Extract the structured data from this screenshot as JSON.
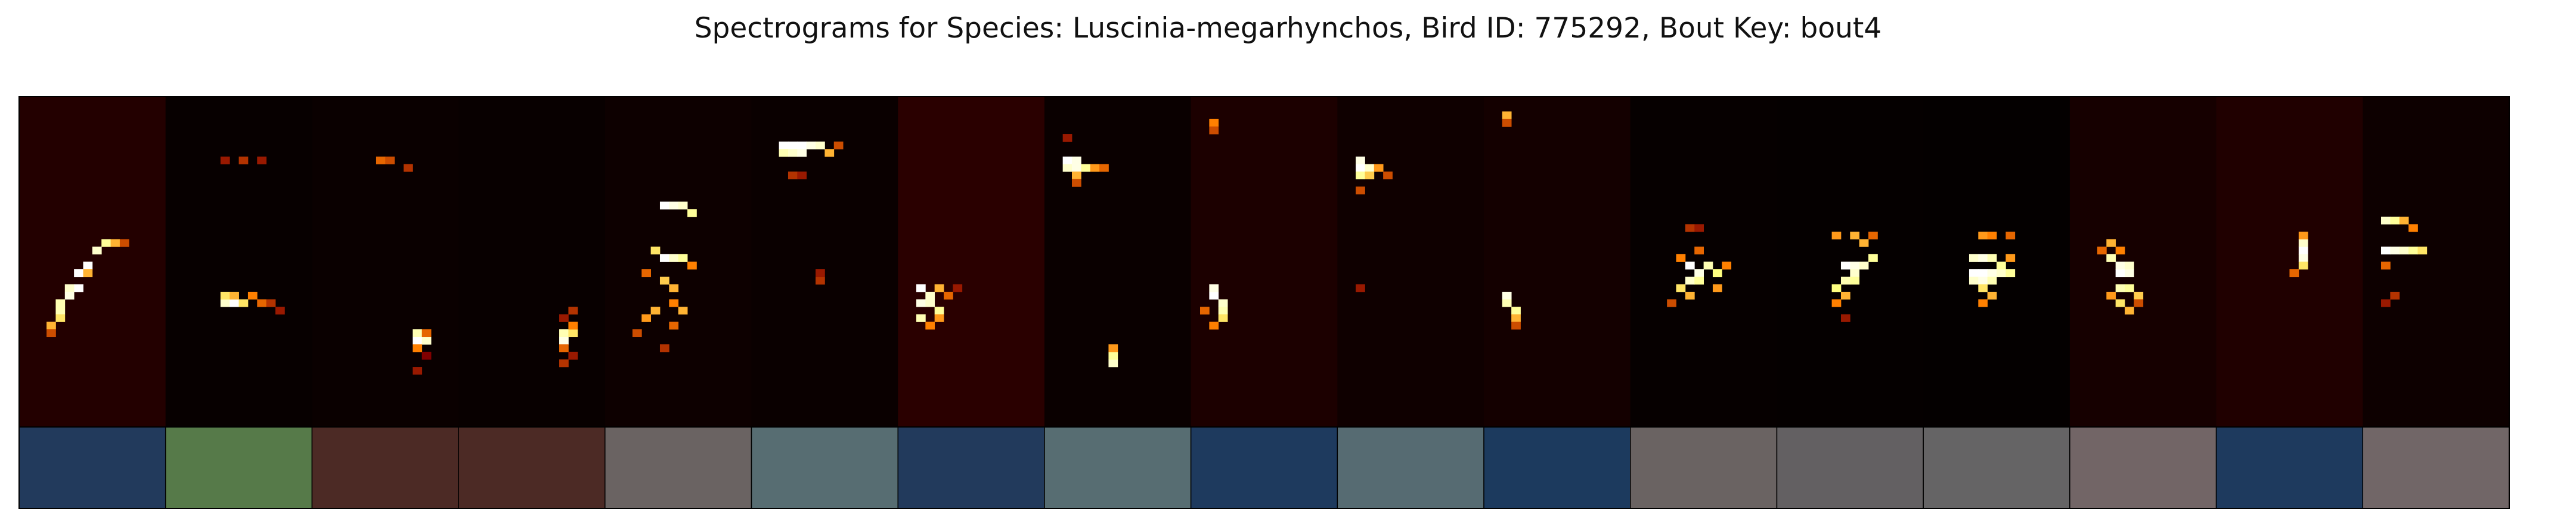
{
  "chart_data": {
    "type": "heatmap",
    "title": "Spectrograms for Species: Luscinia-megarhynchos, Bird ID: 775292, Bout Key: bout4",
    "xlabel": "",
    "ylabel": "",
    "colormap": "afmhot",
    "segment_count": 17,
    "segments": [
      {
        "index": 1,
        "background": "#230000",
        "label_color": "#223a5c",
        "blobs": [
          [
            6,
            18,
            1.0
          ],
          [
            6,
            20,
            1.0
          ],
          [
            7,
            21,
            1.0
          ],
          [
            8,
            23,
            0.9
          ],
          [
            9,
            24,
            0.8
          ],
          [
            10,
            24,
            0.6
          ],
          [
            11,
            24,
            0.4
          ],
          [
            5,
            18,
            0.9
          ],
          [
            5,
            17,
            0.95
          ],
          [
            4,
            16,
            0.85
          ],
          [
            4,
            15,
            0.85
          ],
          [
            4,
            14,
            0.7
          ],
          [
            3,
            13,
            0.6
          ],
          [
            3,
            12,
            0.4
          ],
          [
            7,
            20,
            0.6
          ]
        ]
      },
      {
        "index": 2,
        "background": "#070000",
        "label_color": "#567a49",
        "blobs": [
          [
            6,
            16,
            0.9
          ],
          [
            6,
            17,
            0.7
          ],
          [
            7,
            16,
            1.0
          ],
          [
            8,
            16,
            0.7
          ],
          [
            9,
            17,
            0.5
          ],
          [
            10,
            16,
            0.45
          ],
          [
            11,
            16,
            0.35
          ],
          [
            8,
            35,
            0.35
          ],
          [
            10,
            35,
            0.3
          ],
          [
            6,
            35,
            0.3
          ],
          [
            12,
            15,
            0.3
          ],
          [
            7,
            17,
            0.6
          ]
        ]
      },
      {
        "index": 3,
        "background": "#0a0000",
        "label_color": "#4c2a25",
        "blobs": [
          [
            11,
            11,
            1.0
          ],
          [
            12,
            11,
            0.9
          ],
          [
            11,
            12,
            0.85
          ],
          [
            11,
            10,
            0.5
          ],
          [
            12,
            12,
            0.45
          ],
          [
            7,
            35,
            0.45
          ],
          [
            8,
            35,
            0.4
          ],
          [
            10,
            34,
            0.35
          ],
          [
            11,
            7,
            0.3
          ],
          [
            12,
            9,
            0.25
          ]
        ]
      },
      {
        "index": 4,
        "background": "#080000",
        "label_color": "#4c2a25",
        "blobs": [
          [
            11,
            11,
            0.95
          ],
          [
            11,
            12,
            0.85
          ],
          [
            12,
            12,
            0.7
          ],
          [
            11,
            10,
            0.45
          ],
          [
            12,
            13,
            0.5
          ],
          [
            12,
            15,
            0.35
          ],
          [
            11,
            8,
            0.35
          ],
          [
            12,
            9,
            0.3
          ],
          [
            11,
            14,
            0.3
          ]
        ]
      },
      {
        "index": 5,
        "background": "#0d0000",
        "label_color": "#6a6362",
        "blobs": [
          [
            6,
            29,
            1.0
          ],
          [
            7,
            29,
            0.95
          ],
          [
            8,
            29,
            0.9
          ],
          [
            9,
            28,
            0.8
          ],
          [
            6,
            22,
            1.0
          ],
          [
            7,
            22,
            0.9
          ],
          [
            8,
            22,
            0.8
          ],
          [
            5,
            23,
            0.7
          ],
          [
            6,
            19,
            0.65
          ],
          [
            7,
            18,
            0.6
          ],
          [
            5,
            15,
            0.6
          ],
          [
            8,
            15,
            0.6
          ],
          [
            4,
            14,
            0.55
          ],
          [
            7,
            13,
            0.45
          ],
          [
            6,
            10,
            0.35
          ],
          [
            7,
            16,
            0.5
          ],
          [
            9,
            21,
            0.5
          ],
          [
            3,
            12,
            0.4
          ],
          [
            4,
            20,
            0.45
          ]
        ]
      },
      {
        "index": 6,
        "background": "#0a0000",
        "label_color": "#576d72",
        "blobs": [
          [
            3,
            37,
            1.0
          ],
          [
            4,
            37,
            1.0
          ],
          [
            5,
            37,
            1.0
          ],
          [
            6,
            37,
            0.95
          ],
          [
            7,
            37,
            0.9
          ],
          [
            3,
            36,
            0.85
          ],
          [
            4,
            36,
            0.9
          ],
          [
            5,
            36,
            0.95
          ],
          [
            8,
            36,
            0.6
          ],
          [
            9,
            37,
            0.4
          ],
          [
            4,
            33,
            0.35
          ],
          [
            5,
            33,
            0.3
          ],
          [
            7,
            19,
            0.35
          ],
          [
            7,
            20,
            0.3
          ]
        ]
      },
      {
        "index": 7,
        "background": "#2a0000",
        "label_color": "#223a5c",
        "blobs": [
          [
            2,
            18,
            1.0
          ],
          [
            2,
            16,
            0.95
          ],
          [
            2,
            14,
            0.85
          ],
          [
            3,
            17,
            0.9
          ],
          [
            3,
            16,
            0.9
          ],
          [
            4,
            15,
            0.8
          ],
          [
            4,
            14,
            0.55
          ],
          [
            3,
            13,
            0.5
          ],
          [
            5,
            17,
            0.45
          ],
          [
            6,
            18,
            0.3
          ],
          [
            4,
            18,
            0.6
          ]
        ]
      },
      {
        "index": 8,
        "background": "#0a0000",
        "label_color": "#576d72",
        "blobs": [
          [
            2,
            35,
            1.0
          ],
          [
            3,
            35,
            0.95
          ],
          [
            2,
            34,
            0.9
          ],
          [
            3,
            34,
            0.95
          ],
          [
            4,
            34,
            0.8
          ],
          [
            5,
            34,
            0.55
          ],
          [
            6,
            34,
            0.45
          ],
          [
            3,
            33,
            0.6
          ],
          [
            3,
            32,
            0.4
          ],
          [
            7,
            8,
            0.9
          ],
          [
            7,
            9,
            0.8
          ],
          [
            7,
            10,
            0.55
          ],
          [
            2,
            38,
            0.3
          ]
        ]
      },
      {
        "index": 9,
        "background": "#1c0000",
        "label_color": "#1e3a5e",
        "blobs": [
          [
            2,
            17,
            1.0
          ],
          [
            2,
            18,
            0.95
          ],
          [
            3,
            16,
            0.9
          ],
          [
            3,
            15,
            0.85
          ],
          [
            3,
            14,
            0.7
          ],
          [
            2,
            13,
            0.5
          ],
          [
            1,
            15,
            0.45
          ],
          [
            2,
            40,
            0.5
          ],
          [
            2,
            39,
            0.4
          ]
        ]
      },
      {
        "index": 10,
        "background": "#0f0000",
        "label_color": "#566b72",
        "blobs": [
          [
            2,
            34,
            1.0
          ],
          [
            2,
            35,
            0.95
          ],
          [
            3,
            34,
            0.9
          ],
          [
            2,
            33,
            0.8
          ],
          [
            3,
            33,
            0.65
          ],
          [
            4,
            34,
            0.55
          ],
          [
            5,
            33,
            0.4
          ],
          [
            2,
            31,
            0.4
          ],
          [
            2,
            18,
            0.3
          ]
        ]
      },
      {
        "index": 11,
        "background": "#140000",
        "label_color": "#1c3a5e",
        "blobs": [
          [
            2,
            17,
            0.95
          ],
          [
            2,
            16,
            0.85
          ],
          [
            3,
            15,
            0.8
          ],
          [
            3,
            14,
            0.6
          ],
          [
            3,
            13,
            0.4
          ],
          [
            2,
            41,
            0.6
          ],
          [
            2,
            40,
            0.4
          ]
        ]
      },
      {
        "index": 12,
        "background": "#060000",
        "label_color": "#6a6362",
        "blobs": [
          [
            6,
            21,
            1.0
          ],
          [
            7,
            20,
            0.95
          ],
          [
            6,
            19,
            0.9
          ],
          [
            7,
            19,
            0.8
          ],
          [
            8,
            21,
            0.85
          ],
          [
            9,
            20,
            0.75
          ],
          [
            5,
            18,
            0.7
          ],
          [
            6,
            17,
            0.6
          ],
          [
            9,
            18,
            0.55
          ],
          [
            5,
            22,
            0.5
          ],
          [
            10,
            21,
            0.5
          ],
          [
            4,
            16,
            0.4
          ],
          [
            7,
            23,
            0.45
          ],
          [
            6,
            26,
            0.35
          ],
          [
            7,
            26,
            0.3
          ]
        ]
      },
      {
        "index": 13,
        "background": "#050000",
        "label_color": "#636062",
        "blobs": [
          [
            7,
            21,
            1.0
          ],
          [
            8,
            21,
            0.95
          ],
          [
            9,
            21,
            0.9
          ],
          [
            8,
            20,
            0.9
          ],
          [
            7,
            19,
            0.85
          ],
          [
            8,
            19,
            0.8
          ],
          [
            6,
            18,
            0.75
          ],
          [
            7,
            17,
            0.6
          ],
          [
            6,
            16,
            0.5
          ],
          [
            10,
            22,
            0.8
          ],
          [
            9,
            24,
            0.6
          ],
          [
            8,
            25,
            0.6
          ],
          [
            6,
            25,
            0.55
          ],
          [
            10,
            25,
            0.45
          ],
          [
            7,
            14,
            0.3
          ]
        ]
      },
      {
        "index": 14,
        "background": "#040000",
        "label_color": "#656465",
        "blobs": [
          [
            5,
            20,
            1.0
          ],
          [
            6,
            20,
            1.0
          ],
          [
            7,
            20,
            0.95
          ],
          [
            8,
            20,
            0.9
          ],
          [
            9,
            20,
            0.8
          ],
          [
            5,
            19,
            0.9
          ],
          [
            6,
            19,
            0.95
          ],
          [
            7,
            19,
            0.85
          ],
          [
            5,
            22,
            0.9
          ],
          [
            6,
            22,
            0.95
          ],
          [
            7,
            22,
            0.85
          ],
          [
            8,
            21,
            0.8
          ],
          [
            9,
            22,
            0.55
          ],
          [
            6,
            18,
            0.7
          ],
          [
            7,
            17,
            0.6
          ],
          [
            6,
            16,
            0.5
          ],
          [
            6,
            25,
            0.55
          ],
          [
            7,
            25,
            0.5
          ],
          [
            9,
            25,
            0.45
          ]
        ]
      },
      {
        "index": 15,
        "background": "#160000",
        "label_color": "#726566",
        "blobs": [
          [
            5,
            20,
            1.0
          ],
          [
            6,
            20,
            0.95
          ],
          [
            5,
            21,
            0.95
          ],
          [
            6,
            21,
            0.9
          ],
          [
            4,
            22,
            0.85
          ],
          [
            5,
            18,
            0.85
          ],
          [
            6,
            18,
            0.8
          ],
          [
            5,
            16,
            0.7
          ],
          [
            6,
            15,
            0.6
          ],
          [
            7,
            17,
            0.65
          ],
          [
            4,
            17,
            0.55
          ],
          [
            4,
            24,
            0.6
          ],
          [
            3,
            23,
            0.45
          ],
          [
            5,
            23,
            0.5
          ],
          [
            7,
            16,
            0.4
          ]
        ]
      },
      {
        "index": 16,
        "background": "#200000",
        "label_color": "#1e3a5e",
        "blobs": [
          [
            9,
            23,
            1.0
          ],
          [
            9,
            22,
            0.95
          ],
          [
            9,
            24,
            0.9
          ],
          [
            9,
            21,
            0.7
          ],
          [
            8,
            20,
            0.45
          ],
          [
            9,
            25,
            0.55
          ]
        ]
      },
      {
        "index": 17,
        "background": "#0d0000",
        "label_color": "#716667",
        "blobs": [
          [
            2,
            23,
            1.0
          ],
          [
            3,
            23,
            0.95
          ],
          [
            4,
            23,
            0.9
          ],
          [
            5,
            23,
            0.8
          ],
          [
            6,
            23,
            0.7
          ],
          [
            2,
            27,
            0.9
          ],
          [
            3,
            27,
            0.8
          ],
          [
            4,
            27,
            0.6
          ],
          [
            5,
            26,
            0.5
          ],
          [
            2,
            21,
            0.45
          ],
          [
            3,
            17,
            0.35
          ],
          [
            2,
            16,
            0.3
          ]
        ]
      }
    ]
  }
}
